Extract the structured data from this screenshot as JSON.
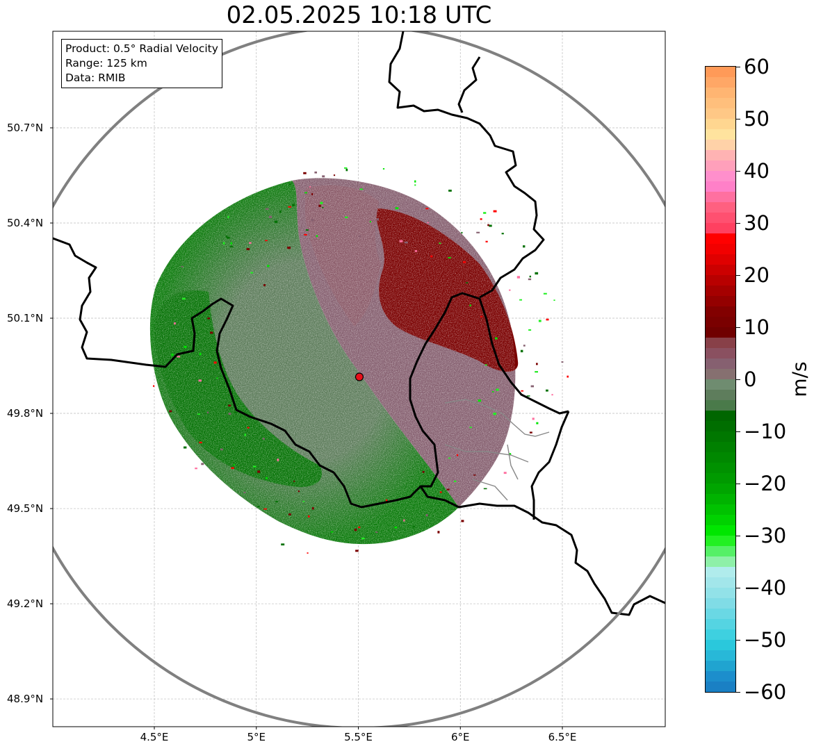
{
  "title": "02.05.2025 10:18 UTC",
  "info": {
    "product": "Product: 0.5° Radial Velocity",
    "range": "Range: 125 km",
    "data": "Data: RMIB"
  },
  "axes": {
    "lat_ticks": [
      {
        "label": "50.7°N",
        "value": 50.7
      },
      {
        "label": "50.4°N",
        "value": 50.4
      },
      {
        "label": "50.1°N",
        "value": 50.1
      },
      {
        "label": "49.8°N",
        "value": 49.8
      },
      {
        "label": "49.5°N",
        "value": 49.5
      },
      {
        "label": "49.2°N",
        "value": 49.2
      },
      {
        "label": "48.9°N",
        "value": 48.9
      }
    ],
    "lon_ticks": [
      {
        "label": "4.5°E",
        "value": 4.5
      },
      {
        "label": "5°E",
        "value": 5.0
      },
      {
        "label": "5.5°E",
        "value": 5.5
      },
      {
        "label": "6°E",
        "value": 6.0
      },
      {
        "label": "6.5°E",
        "value": 6.5
      }
    ],
    "lon_range": [
      4.0,
      7.0
    ],
    "lat_range": [
      48.8,
      51.0
    ]
  },
  "radar_site": {
    "lon": 5.505,
    "lat": 49.915,
    "color": "#e8101a"
  },
  "colorbar": {
    "unit": "m/s",
    "ticks": [
      "60",
      "50",
      "40",
      "30",
      "20",
      "10",
      "0",
      "−10",
      "−20",
      "−30",
      "−40",
      "−50",
      "−60"
    ],
    "tick_values": [
      60,
      50,
      40,
      30,
      20,
      10,
      0,
      -10,
      -20,
      -30,
      -40,
      -50,
      -60
    ],
    "colors_top_to_bottom": [
      "#ff9a58",
      "#ffa766",
      "#ffb572",
      "#ffbf7c",
      "#ffc886",
      "#ffd690",
      "#ffe39e",
      "#ffd2a8",
      "#ffb3b3",
      "#ffa0bb",
      "#ff8fcc",
      "#ff80c8",
      "#ff70a0",
      "#ff6080",
      "#ff5070",
      "#ff4060",
      "#ff0000",
      "#f20000",
      "#e00000",
      "#cc0000",
      "#b80000",
      "#a50000",
      "#940000",
      "#820000",
      "#7a0000",
      "#700000",
      "#884048",
      "#8a5060",
      "#866070",
      "#867070",
      "#6f8c70",
      "#5e7d5c",
      "#4a7a4a",
      "#006600",
      "#006e00",
      "#007700",
      "#008000",
      "#008800",
      "#009100",
      "#009a00",
      "#00a500",
      "#00b300",
      "#00c200",
      "#00d200",
      "#00e600",
      "#22f022",
      "#55f066",
      "#8ef0a8",
      "#b0ecec",
      "#a2e6ea",
      "#92e2e8",
      "#80dce6",
      "#6ad8e4",
      "#55d4e2",
      "#3ed0e0",
      "#2ac8dc",
      "#28b8d8",
      "#20a4d0",
      "#1c8ecc",
      "#1a80c4"
    ]
  },
  "colors": {
    "approach_dark": "#007000",
    "approach_mid": "#5e7d5c",
    "recede_mid": "#866070",
    "recede_dark": "#7a0000",
    "border": "#000000",
    "range_ring": "#808080"
  }
}
